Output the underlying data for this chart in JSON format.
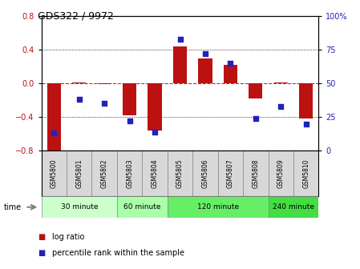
{
  "title": "GDS322 / 9972",
  "samples": [
    "GSM5800",
    "GSM5801",
    "GSM5802",
    "GSM5803",
    "GSM5804",
    "GSM5805",
    "GSM5806",
    "GSM5807",
    "GSM5808",
    "GSM5809",
    "GSM5810"
  ],
  "log_ratio": [
    -0.82,
    0.01,
    -0.01,
    -0.38,
    -0.56,
    0.44,
    0.3,
    0.22,
    -0.18,
    0.01,
    -0.42
  ],
  "percentile": [
    13,
    38,
    35,
    22,
    14,
    83,
    72,
    65,
    24,
    33,
    20
  ],
  "time_groups": [
    {
      "label": "30 minute",
      "start": 0,
      "end": 3,
      "color": "#ccffcc"
    },
    {
      "label": "60 minute",
      "start": 3,
      "end": 5,
      "color": "#aaffaa"
    },
    {
      "label": "120 minute",
      "start": 5,
      "end": 9,
      "color": "#66ee66"
    },
    {
      "label": "240 minute",
      "start": 9,
      "end": 11,
      "color": "#44dd44"
    }
  ],
  "ylim_left": [
    -0.8,
    0.8
  ],
  "ylim_right": [
    0,
    100
  ],
  "yticks_left": [
    -0.8,
    -0.4,
    0,
    0.4,
    0.8
  ],
  "yticks_right": [
    0,
    25,
    50,
    75,
    100
  ],
  "bar_color": "#bb1111",
  "scatter_color": "#2222bb",
  "zero_line_color": "#cc2222",
  "background_color": "#ffffff",
  "legend_log_ratio": "log ratio",
  "legend_percentile": "percentile rank within the sample"
}
